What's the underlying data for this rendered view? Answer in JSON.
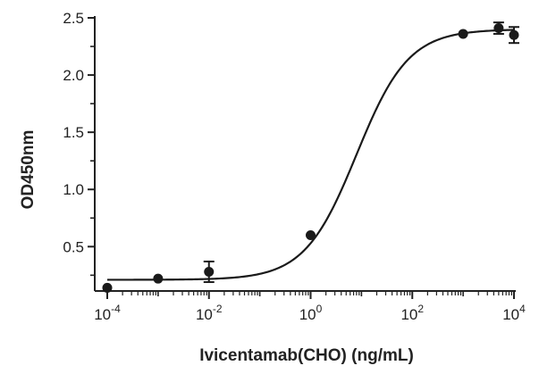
{
  "chart_data": {
    "type": "scatter",
    "title": "",
    "xlabel": "Ivicentamab(CHO) (ng/mL)",
    "ylabel": "OD450nm",
    "xscale": "log",
    "xlim": [
      0.0001,
      10000
    ],
    "ylim": [
      0.12,
      2.5
    ],
    "x_ticks": [
      {
        "value": 0.0001,
        "base": "10",
        "exp": "-4"
      },
      {
        "value": 0.01,
        "base": "10",
        "exp": "-2"
      },
      {
        "value": 1,
        "base": "10",
        "exp": "0"
      },
      {
        "value": 100,
        "base": "10",
        "exp": "2"
      },
      {
        "value": 10000,
        "base": "10",
        "exp": "4"
      }
    ],
    "y_ticks": [
      "0.5",
      "1.0",
      "1.5",
      "2.0",
      "2.5"
    ],
    "grid": false,
    "series": [
      {
        "points": [
          {
            "x": 0.0001,
            "y": 0.14,
            "err": 0.0
          },
          {
            "x": 0.001,
            "y": 0.22,
            "err": 0.0
          },
          {
            "x": 0.01,
            "y": 0.28,
            "err": 0.09
          },
          {
            "x": 1,
            "y": 0.6,
            "err": 0.0
          },
          {
            "x": 1000,
            "y": 2.36,
            "err": 0.0
          },
          {
            "x": 5000,
            "y": 2.41,
            "err": 0.05
          },
          {
            "x": 10000,
            "y": 2.35,
            "err": 0.07
          }
        ],
        "fit": {
          "bottom": 0.21,
          "top": 2.4,
          "ec50": 8,
          "hill": 0.85
        }
      }
    ],
    "colors": {
      "marker": "#1a1a1a",
      "line": "#1a1a1a",
      "axis": "#222222"
    }
  }
}
